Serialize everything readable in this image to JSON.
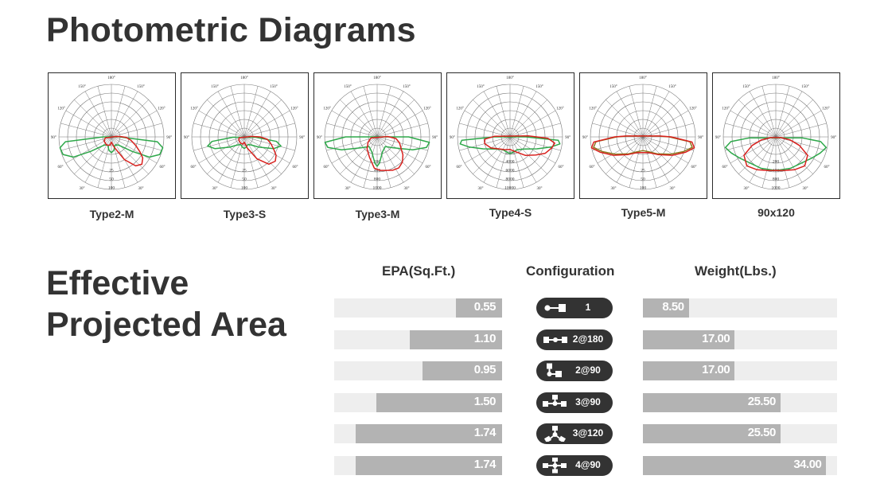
{
  "page": {
    "title": "Photometric Diagrams",
    "section_title_line1": "Effective",
    "section_title_line2": "Projected Area"
  },
  "colors": {
    "text": "#333333",
    "bar_track": "#eeeeee",
    "bar_fill": "#b3b3b3",
    "pill": "#333333",
    "curve_green": "#2ea84a",
    "curve_red": "#d8211e",
    "curve_olive": "#8a7a20"
  },
  "diagrams": [
    {
      "name": "Type2-M",
      "angle_labels": [
        "180°",
        "150°",
        "150°",
        "120°",
        "120°",
        "90°",
        "90°",
        "60°",
        "60°",
        "30°",
        "30°"
      ],
      "radial_labels": [
        "100",
        "50",
        "25"
      ],
      "curves": [
        {
          "color": "green",
          "points": [
            [
              -78,
              1.0
            ],
            [
              -70,
              0.98
            ],
            [
              -62,
              0.82
            ],
            [
              -55,
              0.48
            ],
            [
              -40,
              0.2
            ],
            [
              -25,
              0.17
            ],
            [
              -10,
              0.26
            ],
            [
              0,
              0.3
            ],
            [
              10,
              0.26
            ],
            [
              25,
              0.17
            ],
            [
              40,
              0.2
            ],
            [
              55,
              0.48
            ],
            [
              62,
              0.82
            ],
            [
              70,
              0.98
            ],
            [
              78,
              1.0
            ],
            [
              84,
              0.88
            ],
            [
              90,
              0.15
            ],
            [
              -90,
              0.15
            ],
            [
              -84,
              0.88
            ]
          ]
        },
        {
          "color": "red",
          "points": [
            [
              -30,
              0.18
            ],
            [
              -10,
              0.16
            ],
            [
              0,
              0.1
            ],
            [
              15,
              0.2
            ],
            [
              30,
              0.5
            ],
            [
              40,
              0.72
            ],
            [
              48,
              0.78
            ],
            [
              56,
              0.72
            ],
            [
              62,
              0.62
            ],
            [
              70,
              0.5
            ],
            [
              80,
              0.38
            ],
            [
              88,
              0.28
            ],
            [
              92,
              0.18
            ],
            [
              95,
              0.08
            ],
            [
              -80,
              0.12
            ],
            [
              -60,
              0.16
            ]
          ]
        }
      ]
    },
    {
      "name": "Type3-S",
      "angle_labels": [
        "180°",
        "150°",
        "150°",
        "120°",
        "120°",
        "90°",
        "90°",
        "60°",
        "60°",
        "30°",
        "30°"
      ],
      "radial_labels": [
        "100",
        "50",
        "25"
      ],
      "curves": [
        {
          "color": "green",
          "points": [
            [
              -82,
              0.62
            ],
            [
              -76,
              0.72
            ],
            [
              -68,
              0.6
            ],
            [
              -55,
              0.34
            ],
            [
              -40,
              0.2
            ],
            [
              -25,
              0.16
            ],
            [
              -10,
              0.2
            ],
            [
              0,
              0.22
            ],
            [
              10,
              0.2
            ],
            [
              25,
              0.16
            ],
            [
              40,
              0.2
            ],
            [
              55,
              0.34
            ],
            [
              68,
              0.6
            ],
            [
              76,
              0.72
            ],
            [
              82,
              0.62
            ],
            [
              88,
              0.22
            ],
            [
              -88,
              0.22
            ]
          ]
        },
        {
          "color": "red",
          "points": [
            [
              -30,
              0.14
            ],
            [
              -10,
              0.14
            ],
            [
              0,
              0.1
            ],
            [
              15,
              0.22
            ],
            [
              30,
              0.48
            ],
            [
              42,
              0.7
            ],
            [
              52,
              0.75
            ],
            [
              60,
              0.7
            ],
            [
              68,
              0.6
            ],
            [
              76,
              0.52
            ],
            [
              84,
              0.44
            ],
            [
              90,
              0.3
            ],
            [
              94,
              0.14
            ],
            [
              -80,
              0.1
            ],
            [
              -60,
              0.12
            ]
          ]
        }
      ]
    },
    {
      "name": "Type3-M",
      "angle_labels": [
        "180°",
        "150°",
        "150°",
        "120°",
        "120°",
        "90°",
        "90°",
        "60°",
        "60°",
        "30°",
        "30°"
      ],
      "radial_labels": [
        "1000",
        "800",
        "400",
        "200"
      ],
      "curves": [
        {
          "color": "green",
          "points": [
            [
              -84,
              1.0
            ],
            [
              -78,
              0.96
            ],
            [
              -70,
              0.72
            ],
            [
              -55,
              0.36
            ],
            [
              -40,
              0.24
            ],
            [
              -20,
              0.3
            ],
            [
              -5,
              0.5
            ],
            [
              0,
              0.56
            ],
            [
              5,
              0.5
            ],
            [
              20,
              0.3
            ],
            [
              40,
              0.24
            ],
            [
              55,
              0.36
            ],
            [
              70,
              0.72
            ],
            [
              78,
              0.96
            ],
            [
              84,
              1.0
            ],
            [
              90,
              0.6
            ],
            [
              -90,
              0.6
            ]
          ]
        },
        {
          "color": "red",
          "points": [
            [
              -40,
              0.3
            ],
            [
              -20,
              0.42
            ],
            [
              -5,
              0.6
            ],
            [
              5,
              0.64
            ],
            [
              15,
              0.66
            ],
            [
              25,
              0.7
            ],
            [
              35,
              0.72
            ],
            [
              45,
              0.68
            ],
            [
              55,
              0.6
            ],
            [
              65,
              0.5
            ],
            [
              75,
              0.44
            ],
            [
              85,
              0.36
            ],
            [
              92,
              0.2
            ],
            [
              -80,
              0.12
            ],
            [
              -60,
              0.2
            ]
          ]
        }
      ]
    },
    {
      "name": "Type4-S",
      "angle_labels": [
        "180°",
        "150°",
        "150°",
        "120°",
        "120°",
        "90°",
        "90°",
        "60°",
        "60°",
        "30°",
        "30°"
      ],
      "radial_labels": [
        "10000",
        "8000",
        "6000",
        "4000",
        "2000"
      ],
      "curves": [
        {
          "color": "green",
          "points": [
            [
              -86,
              0.92
            ],
            [
              -82,
              0.96
            ],
            [
              -76,
              0.8
            ],
            [
              -66,
              0.56
            ],
            [
              -50,
              0.36
            ],
            [
              -30,
              0.28
            ],
            [
              -10,
              0.3
            ],
            [
              0,
              0.32
            ],
            [
              10,
              0.3
            ],
            [
              30,
              0.28
            ],
            [
              50,
              0.36
            ],
            [
              66,
              0.56
            ],
            [
              76,
              0.8
            ],
            [
              82,
              0.96
            ],
            [
              86,
              0.92
            ],
            [
              90,
              0.3
            ],
            [
              -90,
              0.3
            ]
          ]
        },
        {
          "color": "red",
          "points": [
            [
              -85,
              0.48
            ],
            [
              -75,
              0.5
            ],
            [
              -60,
              0.42
            ],
            [
              -40,
              0.3
            ],
            [
              -20,
              0.26
            ],
            [
              0,
              0.24
            ],
            [
              20,
              0.3
            ],
            [
              40,
              0.46
            ],
            [
              55,
              0.6
            ],
            [
              65,
              0.74
            ],
            [
              75,
              0.82
            ],
            [
              82,
              0.86
            ],
            [
              88,
              0.72
            ],
            [
              93,
              0.35
            ],
            [
              -92,
              0.3
            ]
          ]
        }
      ]
    },
    {
      "name": "Type5-M",
      "angle_labels": [
        "180°",
        "150°",
        "150°",
        "120°",
        "120°",
        "90°",
        "90°",
        "60°",
        "60°",
        "30°",
        "30°"
      ],
      "radial_labels": [
        "100",
        "50",
        "25"
      ],
      "curves": [
        {
          "color": "olive",
          "points": [
            [
              -90,
              0.5
            ],
            [
              -84,
              0.9
            ],
            [
              -78,
              0.96
            ],
            [
              -70,
              0.82
            ],
            [
              -58,
              0.62
            ],
            [
              -40,
              0.42
            ],
            [
              -20,
              0.3
            ],
            [
              0,
              0.26
            ],
            [
              20,
              0.3
            ],
            [
              40,
              0.42
            ],
            [
              58,
              0.62
            ],
            [
              70,
              0.82
            ],
            [
              78,
              0.96
            ],
            [
              84,
              0.9
            ],
            [
              90,
              0.5
            ],
            [
              93,
              0.3
            ],
            [
              -93,
              0.3
            ]
          ]
        },
        {
          "color": "red",
          "points": [
            [
              -90,
              0.54
            ],
            [
              -84,
              0.94
            ],
            [
              -78,
              1.0
            ],
            [
              -70,
              0.86
            ],
            [
              -58,
              0.66
            ],
            [
              -40,
              0.44
            ],
            [
              -20,
              0.32
            ],
            [
              0,
              0.3
            ],
            [
              20,
              0.32
            ],
            [
              40,
              0.44
            ],
            [
              58,
              0.66
            ],
            [
              70,
              0.86
            ],
            [
              78,
              1.0
            ],
            [
              84,
              0.94
            ],
            [
              90,
              0.54
            ],
            [
              93,
              0.32
            ],
            [
              -93,
              0.32
            ]
          ]
        }
      ]
    },
    {
      "name": "90x120",
      "angle_labels": [
        "180°",
        "150°",
        "150°",
        "120°",
        "120°",
        "90°",
        "90°",
        "60°",
        "60°",
        "30°",
        "30°"
      ],
      "radial_labels": [
        "1000",
        "800",
        "400",
        "200"
      ],
      "curves": [
        {
          "color": "green",
          "points": [
            [
              -78,
              0.98
            ],
            [
              -70,
              0.9
            ],
            [
              -60,
              0.8
            ],
            [
              -45,
              0.7
            ],
            [
              -25,
              0.66
            ],
            [
              0,
              0.64
            ],
            [
              25,
              0.66
            ],
            [
              45,
              0.7
            ],
            [
              60,
              0.8
            ],
            [
              70,
              0.9
            ],
            [
              78,
              0.98
            ],
            [
              84,
              0.86
            ],
            [
              88,
              0.5
            ],
            [
              -88,
              0.5
            ],
            [
              -84,
              0.86
            ]
          ]
        },
        {
          "color": "red",
          "points": [
            [
              -60,
              0.7
            ],
            [
              -45,
              0.78
            ],
            [
              -30,
              0.72
            ],
            [
              -15,
              0.66
            ],
            [
              0,
              0.64
            ],
            [
              15,
              0.66
            ],
            [
              30,
              0.72
            ],
            [
              45,
              0.78
            ],
            [
              60,
              0.7
            ],
            [
              70,
              0.48
            ],
            [
              78,
              0.28
            ],
            [
              82,
              0.1
            ],
            [
              -82,
              0.1
            ],
            [
              -78,
              0.28
            ],
            [
              -70,
              0.48
            ]
          ]
        }
      ]
    }
  ],
  "chart_data": {
    "type": "bar",
    "title": "Effective Projected Area",
    "categories": [
      "1",
      "2@180",
      "2@90",
      "3@90",
      "3@120",
      "4@90"
    ],
    "series": [
      {
        "name": "EPA(Sq.Ft.)",
        "values": [
          0.55,
          1.1,
          0.95,
          1.5,
          1.74,
          1.74
        ]
      },
      {
        "name": "Weight(Lbs.)",
        "values": [
          8.5,
          17.0,
          17.0,
          25.5,
          25.5,
          34.0
        ]
      }
    ],
    "xlabel": "Configuration",
    "ylabel": "",
    "epa_max": 2.0,
    "weight_max": 36.0
  },
  "table": {
    "headers": {
      "epa": "EPA(Sq.Ft.)",
      "config": "Configuration",
      "weight": "Weight(Lbs.)"
    },
    "rows": [
      {
        "epa": "0.55",
        "config": "1",
        "weight": "8.50",
        "icon": "single-arm-icon"
      },
      {
        "epa": "1.10",
        "config": "2@180",
        "weight": "17.00",
        "icon": "two-arms-180-icon"
      },
      {
        "epa": "0.95",
        "config": "2@90",
        "weight": "17.00",
        "icon": "two-arms-90-icon"
      },
      {
        "epa": "1.50",
        "config": "3@90",
        "weight": "25.50",
        "icon": "three-arms-90-icon"
      },
      {
        "epa": "1.74",
        "config": "3@120",
        "weight": "25.50",
        "icon": "three-arms-120-icon"
      },
      {
        "epa": "1.74",
        "config": "4@90",
        "weight": "34.00",
        "icon": "four-arms-90-icon"
      }
    ]
  }
}
